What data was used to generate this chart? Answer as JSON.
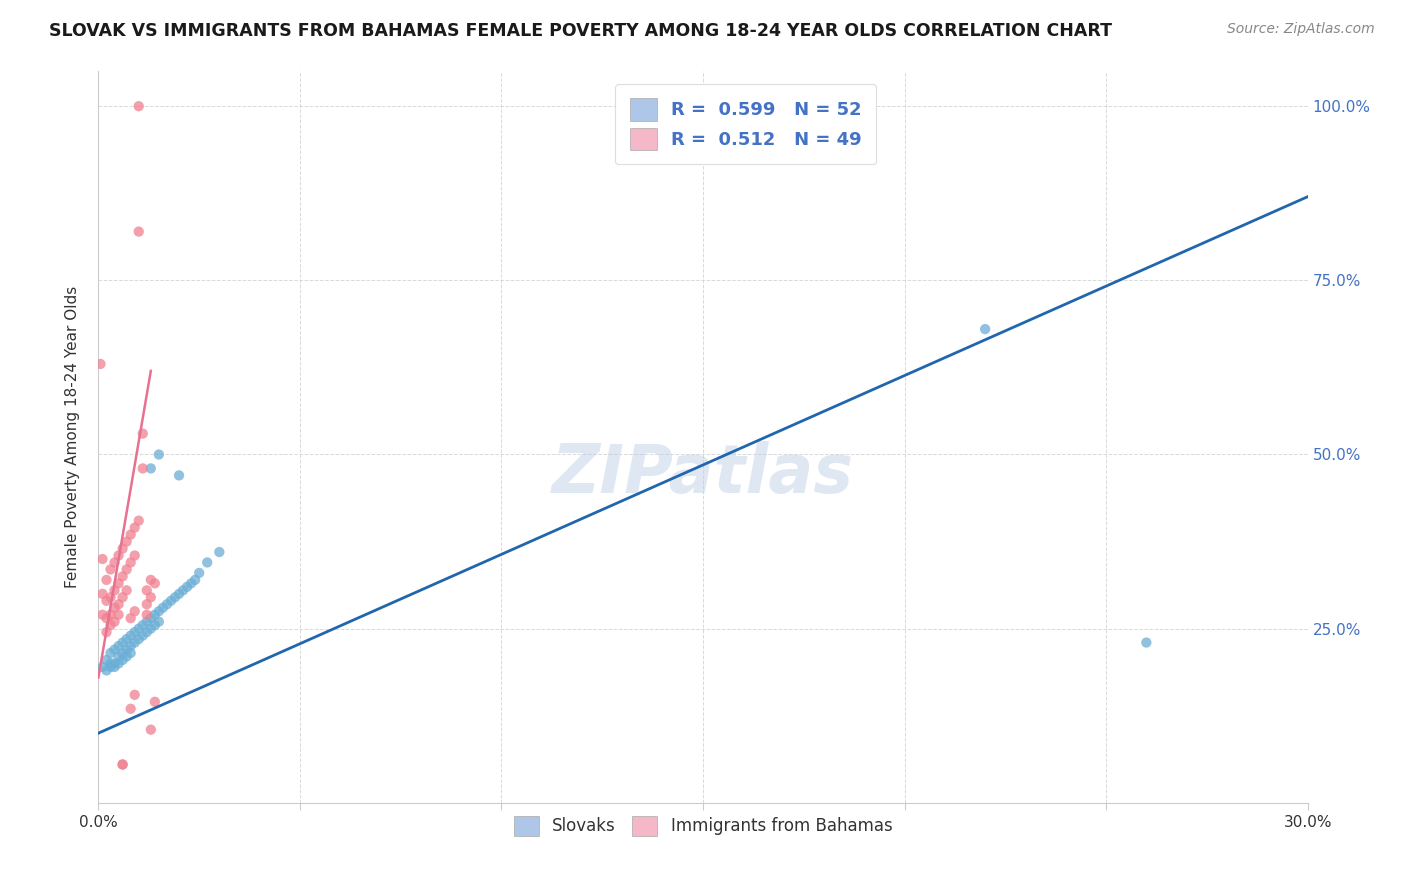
{
  "title": "SLOVAK VS IMMIGRANTS FROM BAHAMAS FEMALE POVERTY AMONG 18-24 YEAR OLDS CORRELATION CHART",
  "source": "Source: ZipAtlas.com",
  "ylabel": "Female Poverty Among 18-24 Year Olds",
  "legend_slovak": {
    "R": "0.599",
    "N": "52",
    "color": "#aec6e8"
  },
  "legend_bahamas": {
    "R": "0.512",
    "N": "49",
    "color": "#f4b8c8"
  },
  "slovak_color": "#6baed6",
  "bahamas_color": "#f08090",
  "trendline_slovak_color": "#2166ac",
  "trendline_bahamas_color": "#e87090",
  "watermark": "ZIPatlas",
  "background_color": "#ffffff",
  "xlim": [
    0.0,
    0.3
  ],
  "ylim": [
    0.0,
    1.05
  ],
  "xticks": [
    0.0,
    0.05,
    0.1,
    0.15,
    0.2,
    0.25,
    0.3
  ],
  "xticklabels": [
    "0.0%",
    "",
    "",
    "",
    "",
    "",
    "30.0%"
  ],
  "yticks": [
    0.0,
    0.25,
    0.5,
    0.75,
    1.0
  ],
  "right_yticklabels": [
    "",
    "25.0%",
    "50.0%",
    "75.0%",
    "100.0%"
  ],
  "slovak_points": [
    [
      0.001,
      0.195
    ],
    [
      0.002,
      0.205
    ],
    [
      0.002,
      0.19
    ],
    [
      0.003,
      0.215
    ],
    [
      0.003,
      0.2
    ],
    [
      0.003,
      0.195
    ],
    [
      0.004,
      0.22
    ],
    [
      0.004,
      0.2
    ],
    [
      0.004,
      0.195
    ],
    [
      0.005,
      0.225
    ],
    [
      0.005,
      0.21
    ],
    [
      0.005,
      0.2
    ],
    [
      0.006,
      0.23
    ],
    [
      0.006,
      0.215
    ],
    [
      0.006,
      0.205
    ],
    [
      0.007,
      0.235
    ],
    [
      0.007,
      0.22
    ],
    [
      0.007,
      0.21
    ],
    [
      0.008,
      0.24
    ],
    [
      0.008,
      0.225
    ],
    [
      0.008,
      0.215
    ],
    [
      0.009,
      0.245
    ],
    [
      0.009,
      0.23
    ],
    [
      0.01,
      0.25
    ],
    [
      0.01,
      0.235
    ],
    [
      0.011,
      0.255
    ],
    [
      0.011,
      0.24
    ],
    [
      0.012,
      0.26
    ],
    [
      0.012,
      0.245
    ],
    [
      0.013,
      0.265
    ],
    [
      0.013,
      0.25
    ],
    [
      0.014,
      0.27
    ],
    [
      0.014,
      0.255
    ],
    [
      0.015,
      0.275
    ],
    [
      0.015,
      0.26
    ],
    [
      0.016,
      0.28
    ],
    [
      0.017,
      0.285
    ],
    [
      0.018,
      0.29
    ],
    [
      0.019,
      0.295
    ],
    [
      0.02,
      0.3
    ],
    [
      0.021,
      0.305
    ],
    [
      0.022,
      0.31
    ],
    [
      0.023,
      0.315
    ],
    [
      0.024,
      0.32
    ],
    [
      0.025,
      0.33
    ],
    [
      0.027,
      0.345
    ],
    [
      0.03,
      0.36
    ],
    [
      0.013,
      0.48
    ],
    [
      0.015,
      0.5
    ],
    [
      0.02,
      0.47
    ],
    [
      0.22,
      0.68
    ],
    [
      0.26,
      0.23
    ]
  ],
  "bahamas_points": [
    [
      0.0005,
      0.63
    ],
    [
      0.001,
      0.35
    ],
    [
      0.001,
      0.3
    ],
    [
      0.001,
      0.27
    ],
    [
      0.002,
      0.32
    ],
    [
      0.002,
      0.29
    ],
    [
      0.002,
      0.265
    ],
    [
      0.002,
      0.245
    ],
    [
      0.003,
      0.335
    ],
    [
      0.003,
      0.295
    ],
    [
      0.003,
      0.27
    ],
    [
      0.003,
      0.255
    ],
    [
      0.004,
      0.345
    ],
    [
      0.004,
      0.305
    ],
    [
      0.004,
      0.28
    ],
    [
      0.004,
      0.26
    ],
    [
      0.005,
      0.355
    ],
    [
      0.005,
      0.315
    ],
    [
      0.005,
      0.285
    ],
    [
      0.005,
      0.27
    ],
    [
      0.006,
      0.365
    ],
    [
      0.006,
      0.325
    ],
    [
      0.006,
      0.295
    ],
    [
      0.007,
      0.375
    ],
    [
      0.007,
      0.335
    ],
    [
      0.007,
      0.305
    ],
    [
      0.008,
      0.385
    ],
    [
      0.008,
      0.345
    ],
    [
      0.008,
      0.265
    ],
    [
      0.009,
      0.395
    ],
    [
      0.009,
      0.355
    ],
    [
      0.009,
      0.275
    ],
    [
      0.01,
      0.405
    ],
    [
      0.01,
      0.82
    ],
    [
      0.01,
      1.0
    ],
    [
      0.011,
      0.53
    ],
    [
      0.011,
      0.48
    ],
    [
      0.012,
      0.305
    ],
    [
      0.012,
      0.285
    ],
    [
      0.012,
      0.27
    ],
    [
      0.013,
      0.32
    ],
    [
      0.013,
      0.295
    ],
    [
      0.013,
      0.105
    ],
    [
      0.014,
      0.315
    ],
    [
      0.006,
      0.055
    ],
    [
      0.006,
      0.055
    ],
    [
      0.008,
      0.135
    ],
    [
      0.009,
      0.155
    ],
    [
      0.014,
      0.145
    ]
  ]
}
